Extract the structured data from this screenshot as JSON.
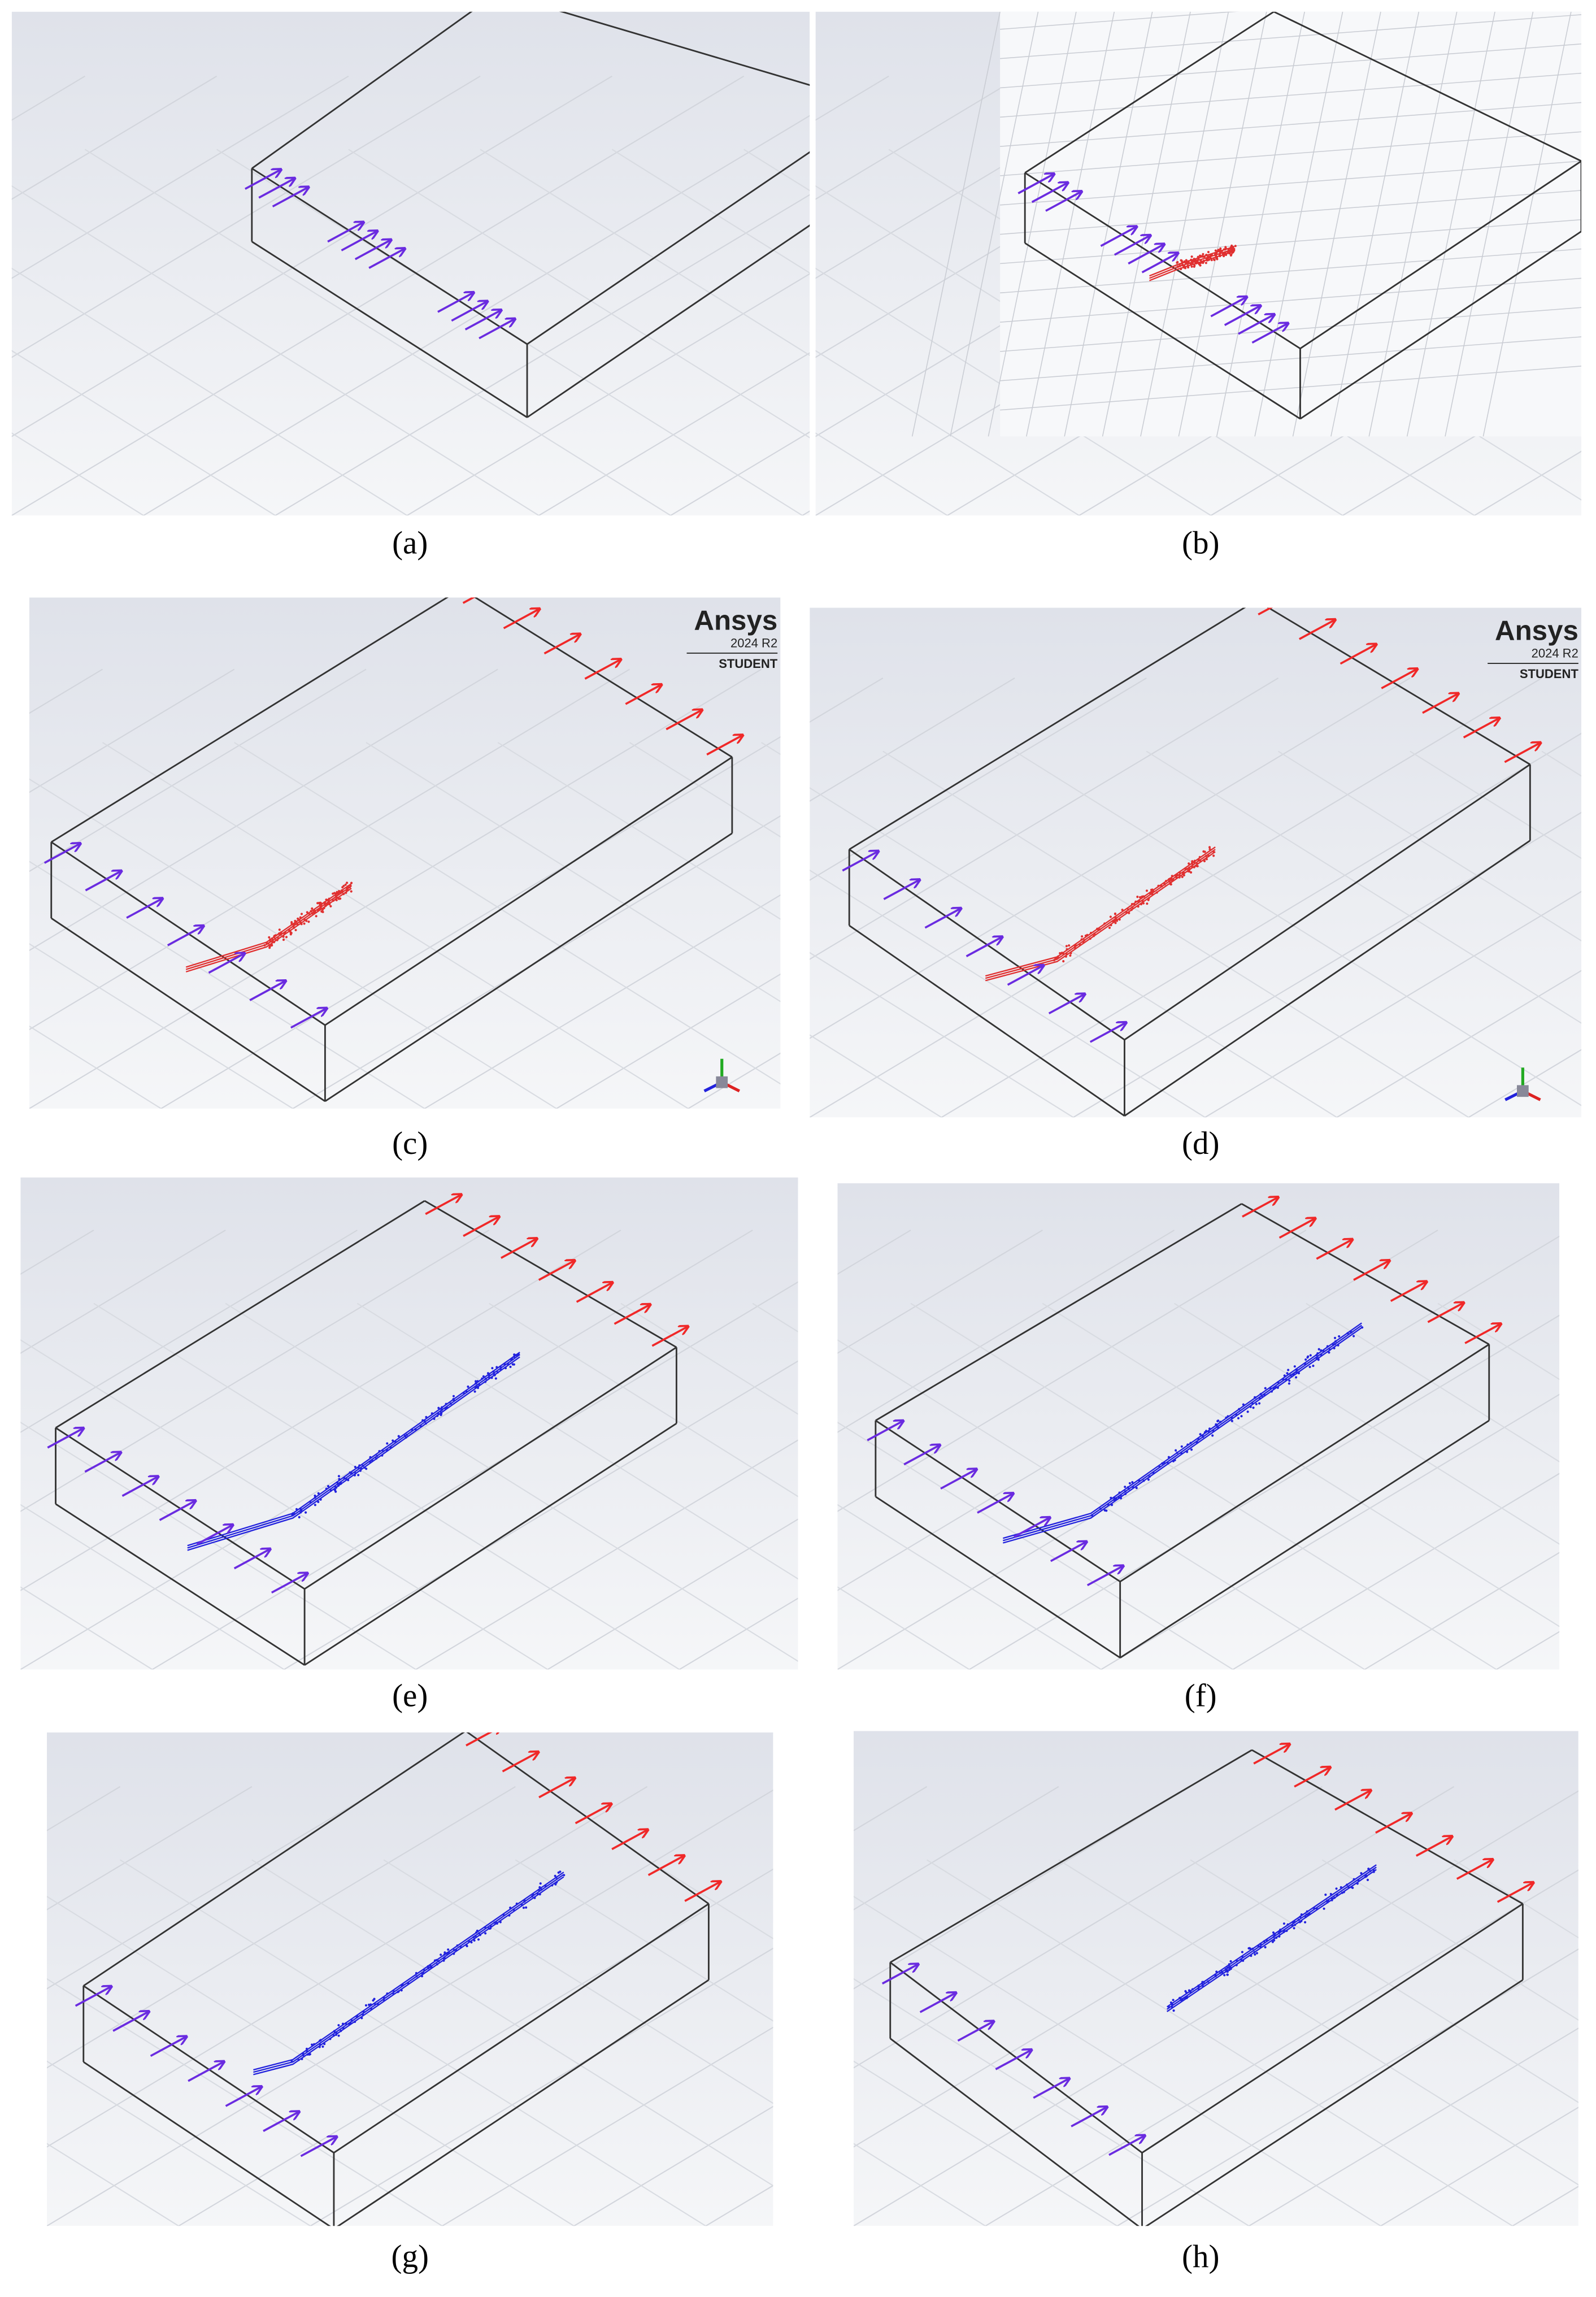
{
  "panels": [
    {
      "label": "(a)"
    },
    {
      "label": "(b)"
    },
    {
      "label": "(c)"
    },
    {
      "label": "(d)"
    },
    {
      "label": "(e)"
    },
    {
      "label": "(f)"
    },
    {
      "label": "(g)"
    },
    {
      "label": "(h)"
    }
  ],
  "logos": [
    {
      "brand": "Ansys",
      "version": "2024 R2",
      "edition": "STUDENT"
    },
    {
      "brand": "Ansys",
      "version": "2024 R2",
      "edition": "STUDENT"
    }
  ]
}
